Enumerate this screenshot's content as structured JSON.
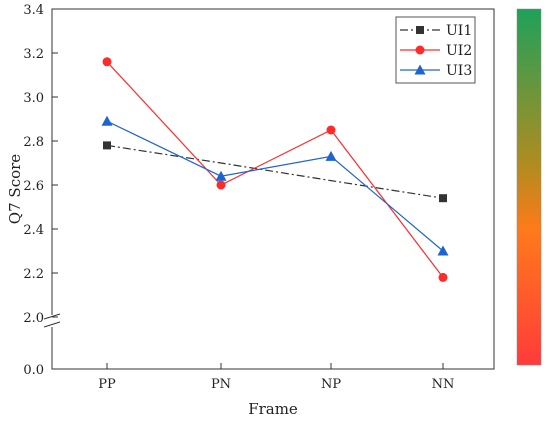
{
  "chart_data": {
    "type": "line",
    "categories": [
      "PP",
      "PN",
      "NP",
      "NN"
    ],
    "xlabel": "Frame",
    "ylabel": "Q7 Score",
    "y_axis_break": true,
    "ylim_lower_segment": [
      0.0,
      0.2
    ],
    "ylim_upper_segment": [
      2.0,
      3.4
    ],
    "yticks_upper": [
      "2.0",
      "2.2",
      "2.4",
      "2.6",
      "2.8",
      "3.0",
      "3.2",
      "3.4"
    ],
    "yticks_lower": [
      "0.0"
    ],
    "legend_position": "top-right",
    "grid": false,
    "series": [
      {
        "name": "UI1",
        "values": [
          2.78,
          2.7,
          2.62,
          2.54
        ],
        "color": "#333333",
        "marker": "square",
        "line": "dash-dot"
      },
      {
        "name": "UI2",
        "values": [
          3.16,
          2.6,
          2.85,
          2.18
        ],
        "color": "#ff2a2a",
        "marker": "circle",
        "line": "solid"
      },
      {
        "name": "UI3",
        "values": [
          2.89,
          2.64,
          2.73,
          2.3
        ],
        "color": "#1e64d0",
        "marker": "triangle",
        "line": "solid"
      }
    ],
    "colorbar": {
      "top_color": "#1ea15a",
      "bottom_color": "#ff3b3b",
      "orientation": "vertical"
    }
  }
}
